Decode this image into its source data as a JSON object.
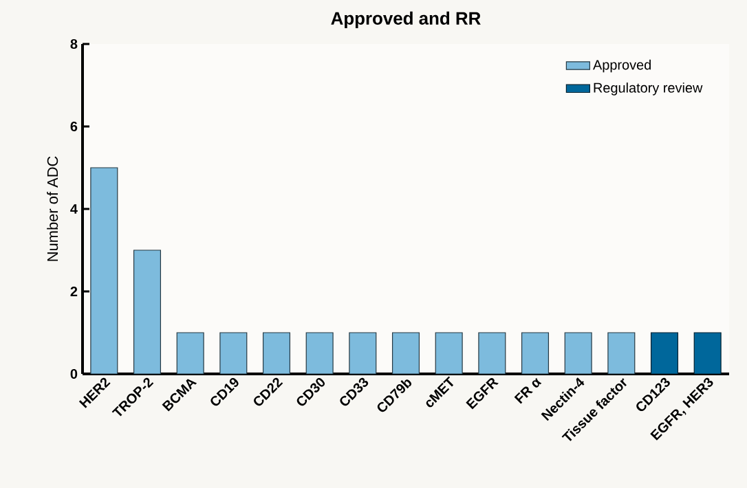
{
  "chart_data": {
    "type": "bar",
    "title": "Approved and RR",
    "ylabel": "Number of ADC",
    "categories": [
      "HER2",
      "TROP-2",
      "BCMA",
      "CD19",
      "CD22",
      "CD30",
      "CD33",
      "CD79b",
      "cMET",
      "EGFR",
      "FR α",
      "Nectin-4",
      "Tissue factor",
      "CD123",
      "EGFR, HER3"
    ],
    "series": [
      {
        "name": "Approved",
        "color": "#7dbbdd",
        "values": [
          5,
          3,
          1,
          1,
          1,
          1,
          1,
          1,
          1,
          1,
          1,
          1,
          1,
          null,
          null
        ]
      },
      {
        "name": "Regulatory review",
        "color": "#00679b",
        "values": [
          null,
          null,
          null,
          null,
          null,
          null,
          null,
          null,
          null,
          null,
          null,
          null,
          null,
          1,
          1
        ]
      }
    ],
    "ylim": [
      0,
      8
    ],
    "yticks": [
      0,
      2,
      4,
      6,
      8
    ],
    "grid": false,
    "legend": "top right"
  }
}
